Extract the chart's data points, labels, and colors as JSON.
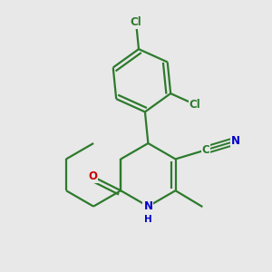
{
  "bg_color": "#e8e8e8",
  "bond_color": "#2d7a2d",
  "bond_width": 1.6,
  "atom_colors": {
    "C": "#2d7a2d",
    "N": "#0000cc",
    "O": "#cc0000",
    "Cl": "#2d7a2d",
    "H": "#0000cc"
  },
  "font_size": 8.5,
  "fig_size": [
    3.0,
    3.0
  ],
  "dpi": 100,
  "xlim": [
    -0.55,
    0.55
  ],
  "ylim": [
    -0.55,
    0.55
  ]
}
